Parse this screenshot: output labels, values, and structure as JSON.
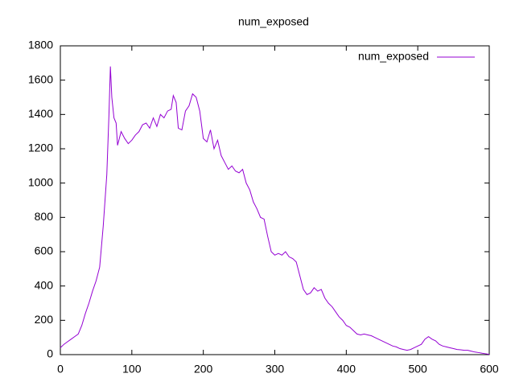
{
  "chart_data": {
    "type": "line",
    "title": "num_exposed",
    "x": [
      0,
      5,
      10,
      15,
      20,
      25,
      30,
      35,
      40,
      45,
      50,
      55,
      60,
      65,
      68,
      70,
      72,
      75,
      78,
      80,
      85,
      90,
      95,
      100,
      105,
      110,
      115,
      120,
      125,
      130,
      135,
      140,
      145,
      150,
      155,
      158,
      162,
      165,
      170,
      175,
      180,
      185,
      190,
      195,
      200,
      205,
      210,
      215,
      220,
      225,
      230,
      235,
      240,
      245,
      250,
      255,
      260,
      265,
      270,
      275,
      280,
      285,
      290,
      295,
      300,
      305,
      310,
      315,
      320,
      325,
      330,
      335,
      340,
      345,
      350,
      355,
      360,
      365,
      370,
      375,
      380,
      385,
      390,
      395,
      400,
      405,
      410,
      415,
      420,
      425,
      430,
      435,
      440,
      445,
      450,
      455,
      460,
      465,
      470,
      475,
      480,
      485,
      490,
      495,
      500,
      505,
      510,
      515,
      520,
      525,
      530,
      535,
      540,
      545,
      550,
      555,
      560,
      565,
      570,
      575,
      580,
      585,
      590,
      595,
      600
    ],
    "series": [
      {
        "name": "num_exposed",
        "color": "#9400d3",
        "values": [
          40,
          60,
          75,
          90,
          105,
          120,
          170,
          240,
          300,
          370,
          430,
          510,
          750,
          1050,
          1400,
          1680,
          1500,
          1380,
          1350,
          1220,
          1300,
          1260,
          1230,
          1250,
          1280,
          1300,
          1340,
          1350,
          1320,
          1380,
          1330,
          1400,
          1380,
          1420,
          1430,
          1510,
          1470,
          1320,
          1310,
          1420,
          1450,
          1520,
          1500,
          1420,
          1260,
          1240,
          1310,
          1200,
          1250,
          1160,
          1120,
          1080,
          1100,
          1070,
          1060,
          1080,
          1000,
          960,
          890,
          850,
          800,
          790,
          690,
          600,
          580,
          590,
          580,
          600,
          570,
          560,
          540,
          460,
          380,
          350,
          360,
          390,
          370,
          380,
          330,
          300,
          280,
          250,
          220,
          200,
          170,
          160,
          140,
          120,
          115,
          120,
          115,
          110,
          100,
          90,
          80,
          70,
          60,
          50,
          45,
          35,
          30,
          25,
          30,
          40,
          50,
          60,
          90,
          105,
          90,
          80,
          60,
          50,
          45,
          40,
          35,
          30,
          28,
          25,
          25,
          20,
          15,
          12,
          8,
          5,
          2
        ]
      }
    ],
    "xlim": [
      0,
      600
    ],
    "xticks": [
      0,
      100,
      200,
      300,
      400,
      500,
      600
    ],
    "ylim": [
      0,
      1800
    ],
    "yticks": [
      0,
      200,
      400,
      600,
      800,
      1000,
      1200,
      1400,
      1600,
      1800
    ],
    "legend": "top right"
  }
}
